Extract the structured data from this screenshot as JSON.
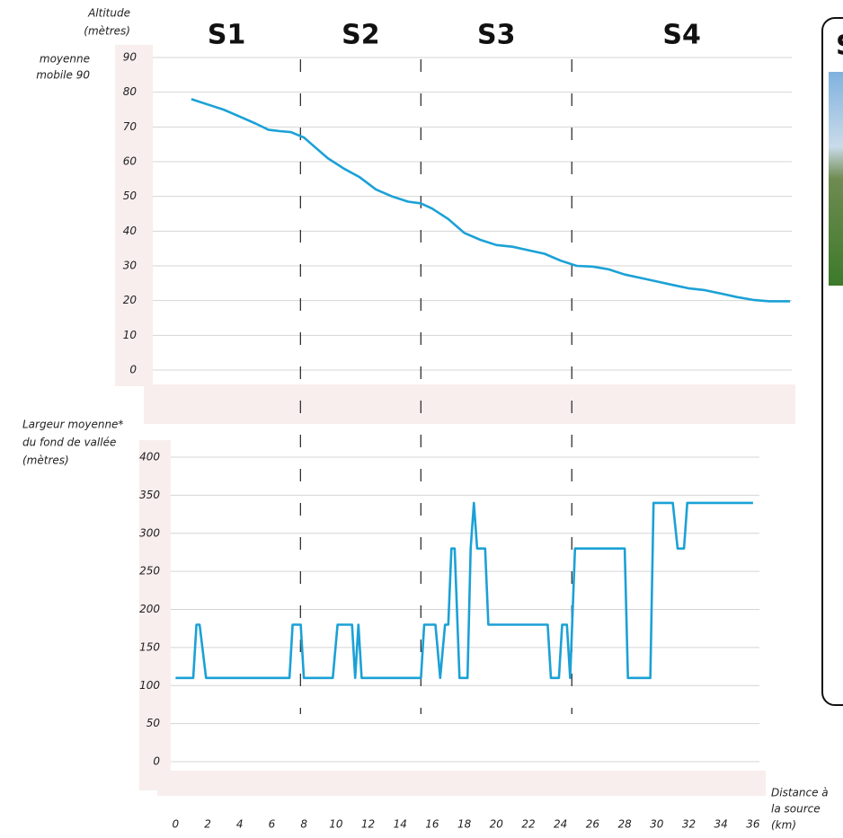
{
  "chart_data": [
    {
      "type": "line",
      "ylabel": [
        "Altitude",
        "(mètres)"
      ],
      "note": [
        "moyenne",
        "mobile 90"
      ],
      "sections": [
        "S1",
        "S2",
        "S3",
        "S4"
      ],
      "section_boundaries": [
        7.8,
        15.3,
        24.7
      ],
      "x": [
        1,
        2,
        3,
        4,
        5,
        5.8,
        6.5,
        7.2,
        8,
        8.5,
        9.5,
        10.5,
        11.5,
        12.5,
        13.5,
        14.5,
        15.3,
        16,
        17,
        18,
        19,
        20,
        21,
        22,
        23,
        24,
        25,
        26,
        27,
        28,
        29,
        30,
        31,
        32,
        33,
        34,
        35,
        36,
        37,
        38.3
      ],
      "values": [
        78,
        76.5,
        75,
        73,
        71,
        69.2,
        68.8,
        68.5,
        67,
        65,
        61,
        58,
        55.5,
        52,
        50,
        48.5,
        48,
        46.5,
        43.5,
        39.5,
        37.5,
        36,
        35.5,
        34.5,
        33.5,
        31.5,
        30,
        29.8,
        29,
        27.5,
        26.5,
        25.5,
        24.5,
        23.5,
        23,
        22,
        21,
        20.2,
        19.8,
        19.8
      ],
      "color": "#1ba1d6",
      "xlim": [
        -1.4,
        38.4
      ],
      "ylim": [
        0,
        90
      ],
      "yticks": [
        0,
        10,
        20,
        30,
        40,
        50,
        60,
        70,
        80,
        90
      ],
      "grid": true
    },
    {
      "type": "line",
      "ylabel": [
        "Largeur moyenne*",
        " du fond de vallée",
        "(mètres)"
      ],
      "xlabel": [
        "Distance à",
        "la source",
        "(km)"
      ],
      "x": [
        0,
        1.1,
        1.3,
        1.5,
        1.9,
        7.1,
        7.3,
        7.8,
        8.0,
        9.8,
        10.1,
        11.0,
        11.2,
        11.4,
        11.6,
        15.3,
        15.5,
        16.2,
        16.5,
        16.8,
        17.0,
        17.2,
        17.4,
        17.7,
        18.2,
        18.4,
        18.6,
        18.8,
        19.3,
        19.5,
        23.2,
        23.4,
        23.9,
        24.1,
        24.4,
        24.6,
        24.9,
        28.0,
        28.2,
        29.6,
        29.8,
        31.0,
        31.3,
        31.7,
        31.9,
        36.0
      ],
      "values": [
        110,
        110,
        180,
        180,
        110,
        110,
        180,
        180,
        110,
        110,
        180,
        180,
        110,
        180,
        110,
        110,
        180,
        180,
        110,
        180,
        180,
        280,
        280,
        110,
        110,
        280,
        340,
        280,
        280,
        180,
        180,
        110,
        110,
        180,
        180,
        110,
        280,
        280,
        110,
        110,
        340,
        340,
        280,
        280,
        340,
        340
      ],
      "color": "#1ba1d6",
      "xlim": [
        -0.3,
        36.4
      ],
      "ylim": [
        0,
        400
      ],
      "yticks": [
        0,
        50,
        100,
        150,
        200,
        250,
        300,
        350,
        400
      ],
      "xticks": [
        0,
        2,
        4,
        6,
        8,
        10,
        12,
        14,
        16,
        18,
        20,
        22,
        24,
        26,
        28,
        30,
        32,
        34,
        36
      ],
      "grid": true
    }
  ],
  "panel": {
    "title": "S"
  }
}
